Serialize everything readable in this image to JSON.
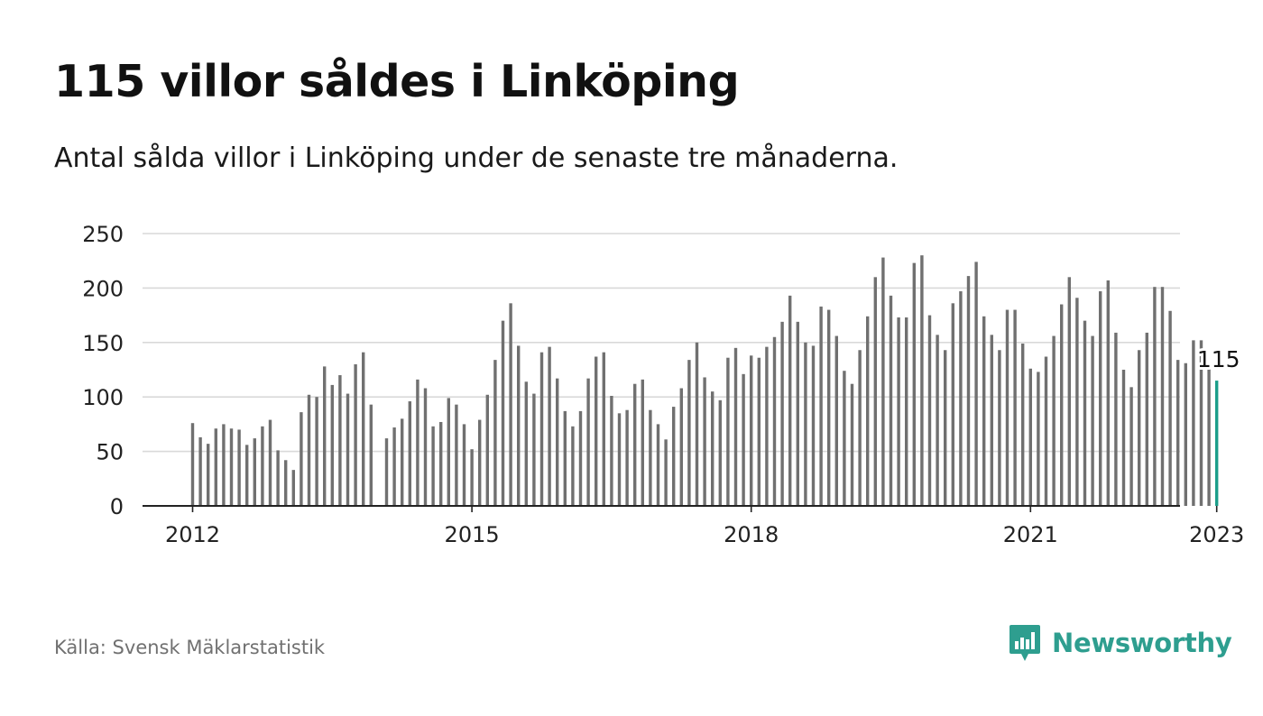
{
  "header": {
    "title": "115 villor såldes i Linköping",
    "subtitle": "Antal sålda villor i Linköping under de senaste tre månaderna."
  },
  "footer": {
    "source": "Källa: Svensk Mäklarstatistik",
    "brand": "Newsworthy"
  },
  "colors": {
    "bar": "#707070",
    "highlight": "#1b9e8a",
    "grid": "#d9d9d9",
    "axis": "#222222",
    "brand": "#2e9e8f"
  },
  "chart_data": {
    "type": "bar",
    "title": "",
    "xlabel": "",
    "ylabel": "",
    "ylim": [
      0,
      250
    ],
    "yticks": [
      0,
      50,
      100,
      150,
      200,
      250
    ],
    "xticks": [
      "2012",
      "2015",
      "2018",
      "2021",
      "2023"
    ],
    "grid": true,
    "series": [
      {
        "values": [
          76,
          63,
          57,
          71,
          75,
          71,
          70,
          56,
          62,
          73,
          79,
          51,
          42,
          33,
          86,
          102,
          100,
          128,
          111,
          120,
          103,
          130,
          141,
          93,
          null,
          62,
          72,
          80,
          96,
          116,
          108,
          73,
          77,
          99,
          93,
          75,
          52,
          79,
          102,
          134,
          170,
          186,
          147,
          114,
          103,
          141,
          146,
          117,
          87,
          73,
          87,
          117,
          137,
          141,
          101,
          85,
          88,
          112,
          116,
          88,
          75,
          61,
          91,
          108,
          134,
          150,
          118,
          105,
          97,
          136,
          145,
          121,
          138,
          136,
          146,
          155,
          169,
          193,
          169,
          150,
          147,
          183,
          180,
          156,
          124,
          112,
          143,
          174,
          210,
          228,
          193,
          173,
          173,
          223,
          230,
          175,
          157,
          143,
          186,
          197,
          211,
          224,
          174,
          157,
          143,
          180,
          180,
          149,
          126,
          123,
          137,
          156,
          185,
          210,
          191,
          170,
          156,
          197,
          207,
          159,
          125,
          109,
          143,
          159,
          201,
          201,
          179,
          134,
          131,
          152,
          152,
          126,
          115
        ]
      }
    ],
    "highlight_label": "115"
  }
}
